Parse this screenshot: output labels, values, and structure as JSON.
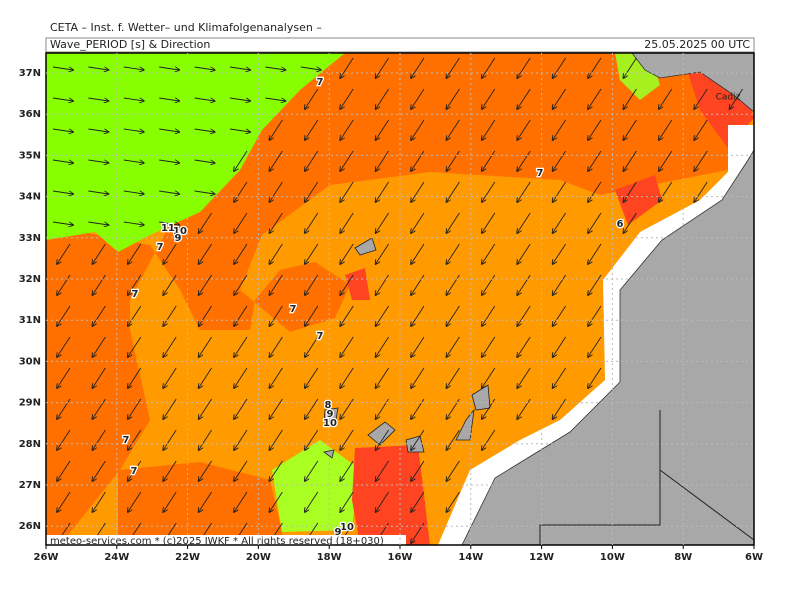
{
  "header": {
    "title": "CETA – Inst. f. Wetter– und Klimafolgenanalysen –",
    "subtitle": "Wave_PERIOD [s] & Direction",
    "date": "25.05.2025 00 UTC"
  },
  "axes": {
    "x_labels": [
      "26W",
      "24W",
      "22W",
      "20W",
      "18W",
      "16W",
      "14W",
      "12W",
      "10W",
      "8W",
      "6W"
    ],
    "y_labels": [
      "37N",
      "36N",
      "35N",
      "34N",
      "33N",
      "32N",
      "31N",
      "30N",
      "29N",
      "28N",
      "27N",
      "26N"
    ]
  },
  "contour_labels": [
    "7",
    "7",
    "11",
    "10",
    "9",
    "7",
    "6",
    "7",
    "7",
    "7",
    "8",
    "9",
    "10",
    "7",
    "7",
    "10",
    "9"
  ],
  "place_labels": [
    "Cadiz"
  ],
  "footer": "meteo-services.com * (c)2025 IWKF * All rights reserved (18+030)"
}
